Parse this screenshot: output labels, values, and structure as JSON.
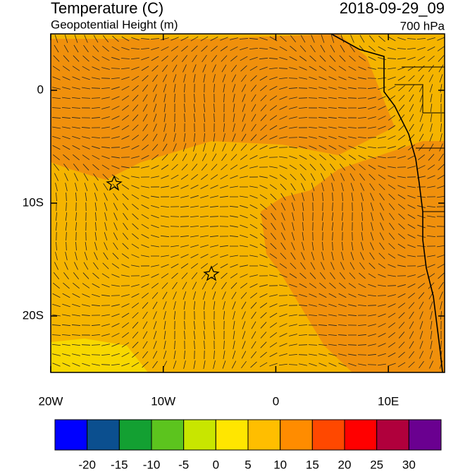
{
  "header": {
    "title": "Temperature (C)",
    "subtitle": "Geopotential Height (m)",
    "time": "2018-09-29_09",
    "level": "700 hPa"
  },
  "map": {
    "xlim": [
      -20,
      15
    ],
    "ylim": [
      -25,
      5
    ],
    "xticks": [
      {
        "value": -20,
        "label": "20W"
      },
      {
        "value": -10,
        "label": "10W"
      },
      0,
      {
        "value": 10,
        "label": "10E"
      }
    ],
    "yticks": [
      0,
      {
        "value": -10,
        "label": "10S"
      },
      {
        "value": -20,
        "label": "20S"
      }
    ]
  },
  "colorbar": {
    "levels": [
      -20,
      -15,
      -10,
      -5,
      0,
      5,
      10,
      15,
      20,
      25,
      30
    ],
    "colors": [
      "#0000ff",
      "#0b4f8f",
      "#13a032",
      "#5cc41e",
      "#c8e600",
      "#ffe600",
      "#ffbe00",
      "#ff8c00",
      "#ff4800",
      "#ff0000",
      "#b0003c",
      "#6a0090"
    ]
  }
}
